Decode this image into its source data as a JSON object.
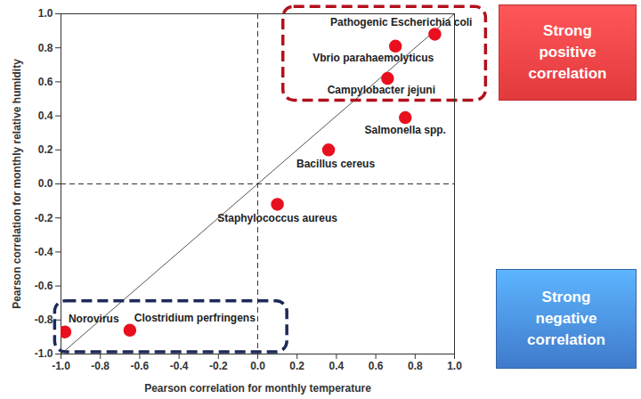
{
  "chart_data": {
    "type": "scatter",
    "xlabel": "Pearson correlation for monthly temperature",
    "ylabel": "Pearson correlation for monthly relative humidity",
    "xlim": [
      -1,
      1
    ],
    "ylim": [
      -1,
      1
    ],
    "xticks": [
      {
        "value": -1,
        "label": "-1.0"
      },
      {
        "value": -0.8,
        "label": "-0.8"
      },
      {
        "value": -0.6,
        "label": "-0.6"
      },
      {
        "value": -0.4,
        "label": "-0.4"
      },
      {
        "value": -0.2,
        "label": "-0.2"
      },
      {
        "value": 0,
        "label": "0.0"
      },
      {
        "value": 0.2,
        "label": "0.2"
      },
      {
        "value": 0.4,
        "label": "0.4"
      },
      {
        "value": 0.6,
        "label": "0.6"
      },
      {
        "value": 0.8,
        "label": "0.8"
      },
      {
        "value": 1,
        "label": "1.0"
      }
    ],
    "yticks": [
      {
        "value": -1,
        "label": "-1.0"
      },
      {
        "value": -0.8,
        "label": "-0.8"
      },
      {
        "value": -0.6,
        "label": "-0.6"
      },
      {
        "value": -0.4,
        "label": "-0.4"
      },
      {
        "value": -0.2,
        "label": "-0.2"
      },
      {
        "value": 0,
        "label": "0.0"
      },
      {
        "value": 0.2,
        "label": "0.2"
      },
      {
        "value": 0.4,
        "label": "0.4"
      },
      {
        "value": 0.6,
        "label": "0.6"
      },
      {
        "value": 0.8,
        "label": "0.8"
      },
      {
        "value": 1,
        "label": "1.0"
      }
    ],
    "grid": false,
    "color": "#e8101e",
    "marker": "circle",
    "points": [
      {
        "label": "Pathogenic Escherichia coli",
        "x": 0.9,
        "y": 0.88
      },
      {
        "label": "Vbrio parahaemolyticus",
        "x": 0.7,
        "y": 0.81
      },
      {
        "label": "Campylobacter jejuni",
        "x": 0.66,
        "y": 0.62
      },
      {
        "label": "Salmonella spp.",
        "x": 0.75,
        "y": 0.39
      },
      {
        "label": "Bacillus cereus",
        "x": 0.36,
        "y": 0.2
      },
      {
        "label": "Staphylococcus aureus",
        "x": 0.1,
        "y": -0.12
      },
      {
        "label": "Norovirus",
        "x": -0.98,
        "y": -0.87
      },
      {
        "label": "Clostridium perfringens",
        "x": -0.65,
        "y": -0.86
      }
    ],
    "trend_line": {
      "x": [
        -1,
        1
      ],
      "y": [
        -1,
        1
      ]
    },
    "reference_lines": [
      {
        "axis": "x",
        "value": 0
      },
      {
        "axis": "y",
        "value": 0
      }
    ],
    "annotations": [
      {
        "text": "Strong positive correlation",
        "color": "#e23a3c"
      },
      {
        "text": "Strong negative correlation",
        "color": "#3f7acb"
      }
    ]
  }
}
